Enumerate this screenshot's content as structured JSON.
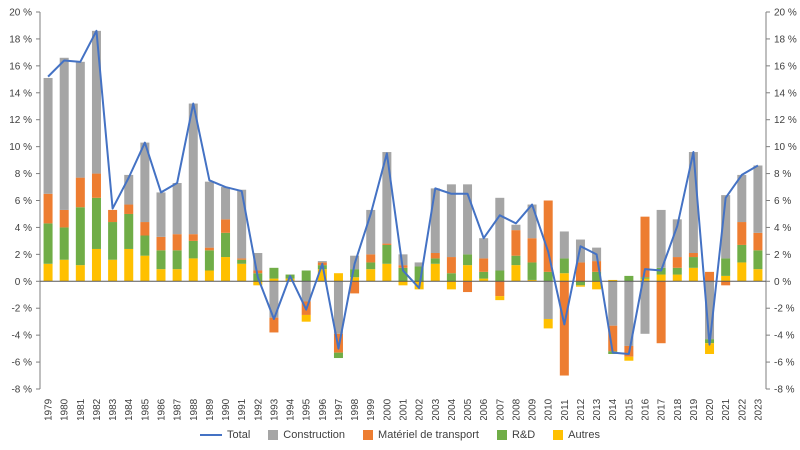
{
  "chart_data": {
    "type": "bar",
    "subtype": "stacked bar with line",
    "title": "",
    "ylim": [
      -8,
      20
    ],
    "ytick_step": 2,
    "ytick_suffix": " %",
    "categories": [
      "1979",
      "1980",
      "1981",
      "1982",
      "1983",
      "1984",
      "1985",
      "1986",
      "1987",
      "1988",
      "1989",
      "1990",
      "1991",
      "1992",
      "1993",
      "1994",
      "1995",
      "1996",
      "1997",
      "1998",
      "1999",
      "2000",
      "2001",
      "2002",
      "2003",
      "2004",
      "2005",
      "2006",
      "2007",
      "2008",
      "2009",
      "2010",
      "2011",
      "2012",
      "2013",
      "2014",
      "2015",
      "2016",
      "2017",
      "2018",
      "2019",
      "2020",
      "2021",
      "2022",
      "2023"
    ],
    "series": [
      {
        "name": "Construction",
        "color": "#a5a5a5",
        "values": [
          8.6,
          11.3,
          8.6,
          10.6,
          0,
          2.2,
          5.9,
          3.3,
          3.8,
          9.7,
          4.9,
          2.4,
          5.1,
          1.3,
          -2.7,
          0,
          -1.5,
          0.1,
          -3.9,
          1.0,
          3.3,
          6.8,
          0.8,
          0.3,
          4.8,
          5.4,
          5.2,
          1.5,
          5.4,
          0.4,
          2.5,
          -2.8,
          2.0,
          1.7,
          1.0,
          -3.3,
          -4.8,
          -3.9,
          4.3,
          2.8,
          7.5,
          -4.3,
          4.7,
          3.5,
          5.0
        ]
      },
      {
        "name": "Matériel de transport",
        "color": "#ed7d31",
        "values": [
          2.2,
          1.3,
          2.2,
          1.8,
          0.9,
          0.7,
          1.0,
          1.0,
          1.2,
          0.5,
          0.2,
          1.0,
          0.1,
          0.2,
          -1.1,
          0,
          -1.0,
          0.2,
          -1.4,
          -0.9,
          0.6,
          0.1,
          0.2,
          0,
          0.4,
          1.2,
          -0.8,
          1.0,
          -1.1,
          1.9,
          1.8,
          5.3,
          -7.0,
          1.4,
          0.8,
          -1.9,
          -0.8,
          4.5,
          -4.6,
          0.8,
          0.3,
          0.7,
          -0.3,
          1.7,
          1.3
        ]
      },
      {
        "name": "R&D",
        "color": "#70ad47",
        "values": [
          3.0,
          2.4,
          4.3,
          3.8,
          2.8,
          2.6,
          1.5,
          1.4,
          1.4,
          1.3,
          1.5,
          1.8,
          0.3,
          0.6,
          0.8,
          0.3,
          0.8,
          0.3,
          -0.4,
          0.6,
          0.5,
          1.4,
          1.0,
          1.1,
          0.4,
          0.6,
          0.8,
          0.5,
          0.8,
          0.7,
          1.3,
          0.7,
          1.1,
          -0.3,
          0.7,
          -0.2,
          0.4,
          0.1,
          0.5,
          0.5,
          0.8,
          -0.3,
          1.3,
          1.3,
          1.4
        ]
      },
      {
        "name": "Autres",
        "color": "#ffc000",
        "values": [
          1.3,
          1.6,
          1.2,
          2.4,
          1.6,
          2.4,
          1.9,
          0.9,
          0.9,
          1.7,
          0.8,
          1.8,
          1.3,
          -0.3,
          0.2,
          0.2,
          -0.5,
          0.9,
          0.6,
          0.3,
          0.9,
          1.3,
          -0.3,
          -0.6,
          1.3,
          -0.6,
          1.2,
          0.2,
          -0.3,
          1.2,
          0.1,
          -0.7,
          0.6,
          -0.1,
          -0.6,
          0.1,
          -0.3,
          0.2,
          0.5,
          0.5,
          1.0,
          -0.8,
          0.4,
          1.4,
          0.9
        ]
      },
      {
        "name": "Total",
        "type": "line",
        "color": "#4472c4",
        "values": [
          15.2,
          16.4,
          16.3,
          18.6,
          5.4,
          7.7,
          10.3,
          6.6,
          7.3,
          13.2,
          7.5,
          7.0,
          6.7,
          0.3,
          -2.8,
          0.4,
          -2.1,
          1.3,
          -5.0,
          1.3,
          5.0,
          9.5,
          0.8,
          -0.5,
          6.9,
          6.5,
          6.5,
          3.2,
          4.9,
          4.3,
          5.7,
          2.2,
          -3.2,
          2.6,
          2.0,
          -5.3,
          -5.4,
          0.9,
          0.8,
          4.1,
          9.6,
          -4.7,
          6.2,
          7.9,
          8.6
        ]
      }
    ],
    "legend_position": "bottom",
    "grid": false
  },
  "legend": [
    "Total",
    "Construction",
    "Matériel de transport",
    "R&D",
    "Autres"
  ]
}
